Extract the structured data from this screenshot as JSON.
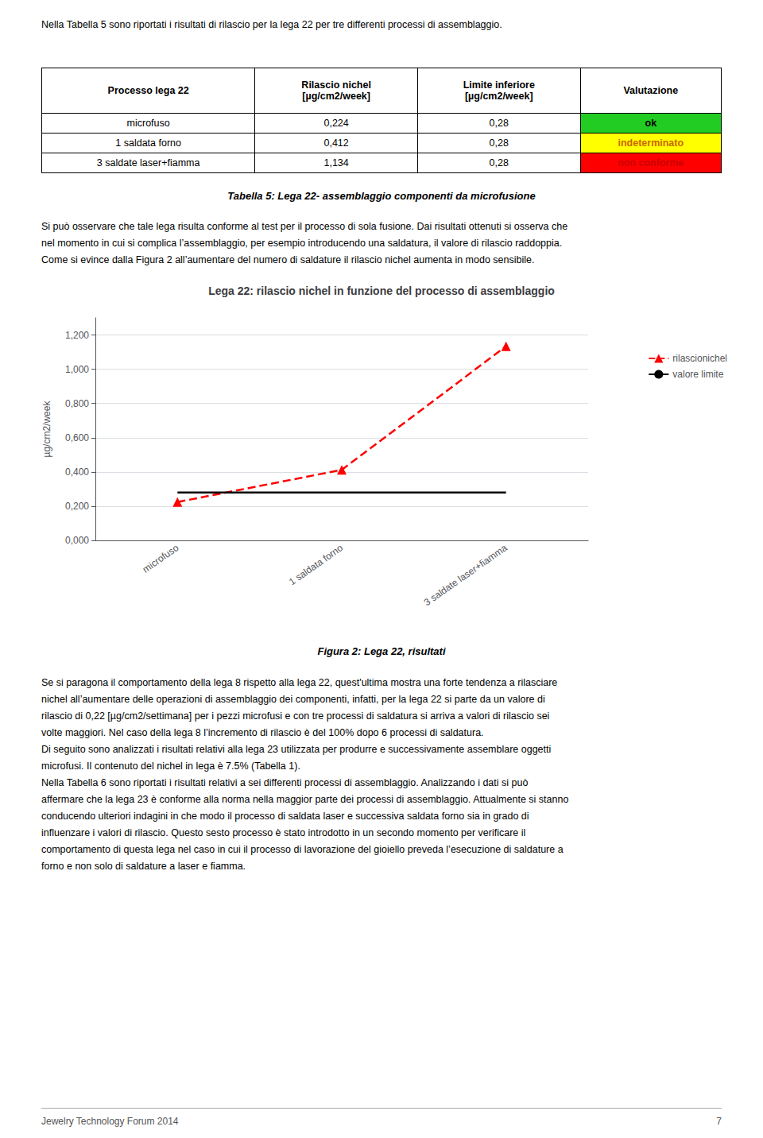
{
  "page": {
    "title_text": "Nella Tabella 5 sono riportati i risultati di rilascio per la lega 22 per tre differenti processi di assemblaggio.",
    "table": {
      "headers": [
        "Processo lega 22",
        "Rilascio nichel\n[µg/cm2/week]",
        "Limite inferiore\n[µg/cm2/week]",
        "Valutazione"
      ],
      "rows": [
        [
          "microfuso",
          "0,224",
          "0,28",
          "ok"
        ],
        [
          "1 saldata forno",
          "0,412",
          "0,28",
          "indeterminato"
        ],
        [
          "3 saldate laser+fiamma",
          "1,134",
          "0,28",
          "non conforme"
        ]
      ],
      "value_colors": [
        "#22cc22",
        "#ffff00",
        "#ff0000"
      ],
      "value_text_colors": [
        "#000000",
        "#cc6600",
        "#cc0000"
      ]
    },
    "table_caption": "Tabella 5: Lega 22- assemblaggio componenti da microfusione",
    "para1": [
      "Si può osservare che tale lega risulta conforme al test per il processo di sola fusione. Dai risultati ottenuti si osserva che",
      "nel momento in cui si complica l’assemblaggio, per esempio introducendo una saldatura, il valore di rilascio raddoppia.",
      "Come si evince dalla Figura 2 all’aumentare del numero di saldature il rilascio nichel aumenta in modo sensibile."
    ],
    "chart_caption": "Figura 2: Lega 22, risultati",
    "para2": [
      "Se si paragona il comportamento della lega 8 rispetto alla lega 22, quest'ultima mostra una forte tendenza a rilasciare",
      "nichel all’aumentare delle operazioni di assemblaggio dei componenti, infatti, per la lega 22 si parte da un valore di",
      "rilascio di 0,22 [µg/cm2/settimana] per i pezzi microfusi e con tre processi di saldatura si arriva a valori di rilascio sei",
      "volte maggiori. Nel caso della lega 8 l’incremento di rilascio è del 100% dopo 6 processi di saldatura.",
      "Di seguito sono analizzati i risultati relativi alla lega 23 utilizzata per produrre e successivamente assemblare oggetti",
      "microfusi. Il contenuto del nichel in lega è 7.5% (Tabella 1).",
      "Nella Tabella 6 sono riportati i risultati relativi a sei differenti processi di assemblaggio. Analizzando i dati si può",
      "affermare che la lega 23 è conforme alla norma nella maggior parte dei processi di assemblaggio. Attualmente si stanno",
      "conducendo ulteriori indagini in che modo il processo di saldata laser e successiva saldata forno sia in grado di",
      "influenzare i valori di rilascio. Questo sesto processo è stato introdotto in un secondo momento per verificare il",
      "comportamento di questa lega nel caso in cui il processo di lavorazione del gioiello preveda l’esecuzione di saldature  a",
      "forno e non solo di saldature a laser e fiamma."
    ],
    "footer_left": "Jewelry Technology Forum 2014",
    "footer_right": "7"
  },
  "chart_data": {
    "type": "line",
    "title": "Lega 22: rilascio nichel in funzione del processo di assemblaggio",
    "categories": [
      "microfuso",
      "1 saldata forno",
      "3 saldate laser+fiamma"
    ],
    "y_label": "µg/cm2/week",
    "series": [
      {
        "name": "rilascionichel",
        "color": "red",
        "marker": "triangle",
        "line_style": "dashed",
        "values": [
          0.224,
          0.412,
          1.134
        ]
      },
      {
        "name": "valore limite",
        "color": "black",
        "line_style": "solid",
        "values": [
          0.28,
          0.28,
          0.28
        ]
      }
    ],
    "ylim": [
      0.0,
      1.3
    ],
    "yticks": [
      {
        "value": 0.0,
        "label": "0,000"
      },
      {
        "value": 0.2,
        "label": "0,200"
      },
      {
        "value": 0.4,
        "label": "0,400"
      },
      {
        "value": 0.6,
        "label": "0,600"
      },
      {
        "value": 0.8,
        "label": "0,800"
      },
      {
        "value": 1.0,
        "label": "1,000"
      },
      {
        "value": 1.2,
        "label": "1,200"
      }
    ],
    "grid": true,
    "legend": "right"
  }
}
